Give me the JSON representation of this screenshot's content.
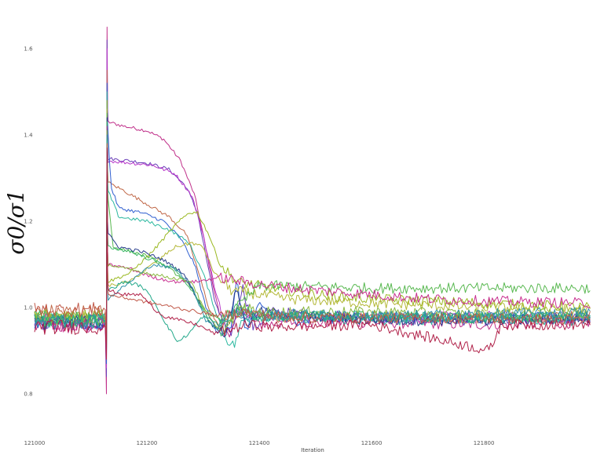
{
  "chart_data": {
    "type": "line",
    "title": "",
    "xlabel": "Iteration",
    "ylabel": "σ0/σ1",
    "xlim": [
      121000,
      121990
    ],
    "ylim": [
      0.72,
      1.66
    ],
    "xticks": [
      121000,
      121200,
      121400,
      121600,
      121800
    ],
    "yticks": [
      0.8,
      1.0,
      1.2,
      1.4,
      1.6
    ],
    "xtick_labels": [
      "121000",
      "121200",
      "121400",
      "121600",
      "121800"
    ],
    "ytick_labels": [
      "0.8",
      "1.0",
      "1.2",
      "1.4",
      "1.6"
    ],
    "grid": false,
    "legend": "none",
    "spike_x": 121128,
    "series": [
      {
        "color": "#c0308a",
        "base": 0.955,
        "peak": 1.65,
        "low": 0.8,
        "values": [
          [
            121131,
            1.43
          ],
          [
            121160,
            1.42
          ],
          [
            121200,
            1.41
          ],
          [
            121230,
            1.39
          ],
          [
            121260,
            1.34
          ],
          [
            121285,
            1.26
          ],
          [
            121300,
            1.17
          ],
          [
            121315,
            1.07
          ],
          [
            121330,
            0.98
          ],
          [
            121345,
            0.94
          ],
          [
            121370,
            0.99
          ],
          [
            121400,
            0.96
          ],
          [
            121450,
            0.965
          ],
          [
            121600,
            0.965
          ],
          [
            121800,
            0.96
          ],
          [
            121990,
            0.965
          ]
        ]
      },
      {
        "color": "#6a3fb8",
        "base": 0.965,
        "peak": 1.62,
        "low": 0.84,
        "values": [
          [
            121131,
            1.345
          ],
          [
            121170,
            1.34
          ],
          [
            121200,
            1.335
          ],
          [
            121240,
            1.32
          ],
          [
            121270,
            1.28
          ],
          [
            121290,
            1.22
          ],
          [
            121305,
            1.12
          ],
          [
            121320,
            1.02
          ],
          [
            121335,
            0.96
          ],
          [
            121350,
            0.94
          ],
          [
            121370,
            1.05
          ],
          [
            121390,
            0.95
          ],
          [
            121420,
            0.99
          ],
          [
            121600,
            0.975
          ],
          [
            121800,
            0.97
          ],
          [
            121990,
            0.975
          ]
        ]
      },
      {
        "color": "#b837c9",
        "base": 0.97,
        "peak": 1.6,
        "low": 0.86,
        "values": [
          [
            121131,
            1.34
          ],
          [
            121170,
            1.335
          ],
          [
            121210,
            1.33
          ],
          [
            121250,
            1.31
          ],
          [
            121280,
            1.26
          ],
          [
            121300,
            1.17
          ],
          [
            121320,
            1.05
          ],
          [
            121340,
            0.96
          ],
          [
            121360,
            1.0
          ],
          [
            121400,
            0.98
          ],
          [
            121600,
            0.975
          ],
          [
            121800,
            0.98
          ],
          [
            121990,
            0.975
          ]
        ]
      },
      {
        "color": "#c06848",
        "base": 0.99,
        "peak": 1.55,
        "low": 0.88,
        "values": [
          [
            121131,
            1.29
          ],
          [
            121160,
            1.27
          ],
          [
            121200,
            1.24
          ],
          [
            121240,
            1.21
          ],
          [
            121270,
            1.17
          ],
          [
            121290,
            1.09
          ],
          [
            121310,
            1.0
          ],
          [
            121330,
            0.95
          ],
          [
            121360,
            0.99
          ],
          [
            121400,
            0.975
          ],
          [
            121600,
            0.98
          ],
          [
            121800,
            0.975
          ],
          [
            121990,
            0.98
          ]
        ]
      },
      {
        "color": "#2f5fd0",
        "base": 0.965,
        "peak": 1.52,
        "low": 0.87,
        "values": [
          [
            121131,
            1.4
          ],
          [
            121136,
            1.28
          ],
          [
            121150,
            1.23
          ],
          [
            121190,
            1.22
          ],
          [
            121230,
            1.2
          ],
          [
            121260,
            1.16
          ],
          [
            121285,
            1.1
          ],
          [
            121305,
            1.0
          ],
          [
            121325,
            0.94
          ],
          [
            121350,
            0.96
          ],
          [
            121360,
            1.06
          ],
          [
            121375,
            0.95
          ],
          [
            121400,
            1.0
          ],
          [
            121450,
            0.97
          ],
          [
            121600,
            0.98
          ],
          [
            121800,
            0.975
          ],
          [
            121990,
            0.98
          ]
        ]
      },
      {
        "color": "#2cb8a0",
        "base": 0.97,
        "peak": 1.5,
        "low": 0.9,
        "values": [
          [
            121131,
            1.27
          ],
          [
            121150,
            1.21
          ],
          [
            121200,
            1.2
          ],
          [
            121240,
            1.18
          ],
          [
            121275,
            1.15
          ],
          [
            121300,
            1.08
          ],
          [
            121320,
            1.0
          ],
          [
            121340,
            0.93
          ],
          [
            121355,
            0.91
          ],
          [
            121370,
            0.97
          ],
          [
            121400,
            0.98
          ],
          [
            121600,
            0.97
          ],
          [
            121800,
            0.975
          ],
          [
            121990,
            0.97
          ]
        ]
      },
      {
        "color": "#9ab820",
        "base": 0.98,
        "peak": 1.48,
        "low": 0.9,
        "values": [
          [
            121131,
            1.06
          ],
          [
            121170,
            1.08
          ],
          [
            121210,
            1.13
          ],
          [
            121250,
            1.19
          ],
          [
            121275,
            1.22
          ],
          [
            121290,
            1.22
          ],
          [
            121310,
            1.17
          ],
          [
            121330,
            1.1
          ],
          [
            121360,
            1.06
          ],
          [
            121400,
            1.05
          ],
          [
            121450,
            1.04
          ],
          [
            121500,
            1.03
          ],
          [
            121600,
            1.02
          ],
          [
            121800,
            1.01
          ],
          [
            121990,
            1.0
          ]
        ]
      },
      {
        "color": "#b4b838",
        "base": 0.975,
        "peak": 1.46,
        "low": 0.9,
        "values": [
          [
            121131,
            1.05
          ],
          [
            121170,
            1.06
          ],
          [
            121210,
            1.1
          ],
          [
            121250,
            1.14
          ],
          [
            121280,
            1.15
          ],
          [
            121300,
            1.14
          ],
          [
            121320,
            1.08
          ],
          [
            121350,
            1.04
          ],
          [
            121400,
            1.03
          ],
          [
            121450,
            1.02
          ],
          [
            121600,
            1.01
          ],
          [
            121800,
            1.0
          ],
          [
            121990,
            0.995
          ]
        ]
      },
      {
        "color": "#58b850",
        "base": 0.97,
        "peak": 1.45,
        "low": 0.9,
        "values": [
          [
            121131,
            1.25
          ],
          [
            121140,
            1.14
          ],
          [
            121170,
            1.13
          ],
          [
            121200,
            1.12
          ],
          [
            121240,
            1.09
          ],
          [
            121270,
            1.06
          ],
          [
            121300,
            1.0
          ],
          [
            121330,
            0.97
          ],
          [
            121360,
            1.0
          ],
          [
            121400,
            1.05
          ],
          [
            121450,
            1.05
          ],
          [
            121600,
            1.045
          ],
          [
            121800,
            1.045
          ],
          [
            121990,
            1.045
          ]
        ]
      },
      {
        "color": "#283c8c",
        "base": 0.965,
        "peak": 1.44,
        "low": 0.89,
        "values": [
          [
            121131,
            1.17
          ],
          [
            121150,
            1.14
          ],
          [
            121190,
            1.13
          ],
          [
            121230,
            1.11
          ],
          [
            121265,
            1.08
          ],
          [
            121290,
            1.02
          ],
          [
            121315,
            0.96
          ],
          [
            121340,
            0.94
          ],
          [
            121360,
            1.05
          ],
          [
            121375,
            0.96
          ],
          [
            121400,
            0.99
          ],
          [
            121600,
            0.97
          ],
          [
            121800,
            0.97
          ],
          [
            121990,
            0.975
          ]
        ]
      },
      {
        "color": "#3cb868",
        "base": 0.975,
        "peak": 1.43,
        "low": 0.9,
        "values": [
          [
            121131,
            1.14
          ],
          [
            121170,
            1.13
          ],
          [
            121210,
            1.11
          ],
          [
            121250,
            1.09
          ],
          [
            121280,
            1.04
          ],
          [
            121310,
            0.97
          ],
          [
            121335,
            0.94
          ],
          [
            121360,
            1.0
          ],
          [
            121400,
            0.98
          ],
          [
            121600,
            0.98
          ],
          [
            121800,
            0.975
          ],
          [
            121990,
            0.98
          ]
        ]
      },
      {
        "color": "#c83090",
        "base": 0.96,
        "peak": 1.42,
        "low": 0.88,
        "values": [
          [
            121131,
            1.1
          ],
          [
            121170,
            1.09
          ],
          [
            121210,
            1.07
          ],
          [
            121250,
            1.06
          ],
          [
            121290,
            1.06
          ],
          [
            121330,
            1.07
          ],
          [
            121370,
            1.06
          ],
          [
            121420,
            1.05
          ],
          [
            121500,
            1.04
          ],
          [
            121600,
            1.03
          ],
          [
            121700,
            1.02
          ],
          [
            121800,
            1.015
          ],
          [
            121990,
            1.01
          ]
        ]
      },
      {
        "color": "#8ab840",
        "base": 0.98,
        "peak": 1.41,
        "low": 0.9,
        "values": [
          [
            121131,
            1.1
          ],
          [
            121160,
            1.09
          ],
          [
            121200,
            1.08
          ],
          [
            121240,
            1.07
          ],
          [
            121280,
            1.06
          ],
          [
            121300,
            1.0
          ],
          [
            121320,
            0.96
          ],
          [
            121340,
            0.95
          ],
          [
            121370,
            1.0
          ],
          [
            121400,
            0.99
          ],
          [
            121600,
            0.99
          ],
          [
            121800,
            0.985
          ],
          [
            121990,
            0.985
          ]
        ]
      },
      {
        "color": "#3090a8",
        "base": 0.97,
        "peak": 1.4,
        "low": 0.9,
        "values": [
          [
            121131,
            1.02
          ],
          [
            121170,
            1.06
          ],
          [
            121210,
            1.1
          ],
          [
            121250,
            1.09
          ],
          [
            121280,
            1.05
          ],
          [
            121305,
            0.97
          ],
          [
            121325,
            0.95
          ],
          [
            121345,
            0.99
          ],
          [
            121380,
            0.98
          ],
          [
            121450,
            0.985
          ],
          [
            121600,
            0.98
          ],
          [
            121800,
            0.985
          ],
          [
            121990,
            0.99
          ]
        ]
      },
      {
        "color": "#22a88a",
        "base": 0.97,
        "peak": 1.39,
        "low": 0.9,
        "values": [
          [
            121131,
            1.04
          ],
          [
            121160,
            1.06
          ],
          [
            121190,
            1.05
          ],
          [
            121210,
            1.02
          ],
          [
            121235,
            0.96
          ],
          [
            121255,
            0.92
          ],
          [
            121275,
            0.94
          ],
          [
            121300,
            0.98
          ],
          [
            121330,
            0.96
          ],
          [
            121360,
            0.99
          ],
          [
            121400,
            0.98
          ],
          [
            121600,
            0.98
          ],
          [
            121800,
            0.975
          ],
          [
            121990,
            0.98
          ]
        ]
      },
      {
        "color": "#c05848",
        "base": 0.995,
        "peak": 1.38,
        "low": 0.9,
        "values": [
          [
            121131,
            1.03
          ],
          [
            121170,
            1.02
          ],
          [
            121210,
            1.01
          ],
          [
            121250,
            1.0
          ],
          [
            121290,
            0.99
          ],
          [
            121330,
            0.98
          ],
          [
            121370,
            0.99
          ],
          [
            121420,
            0.98
          ],
          [
            121600,
            0.975
          ],
          [
            121800,
            0.975
          ],
          [
            121990,
            0.97
          ]
        ]
      },
      {
        "color": "#b02048",
        "base": 0.955,
        "peak": 1.37,
        "low": 0.88,
        "values": [
          [
            121131,
            1.04
          ],
          [
            121160,
            1.03
          ],
          [
            121190,
            1.03
          ],
          [
            121210,
            1.0
          ],
          [
            121230,
            0.98
          ],
          [
            121260,
            0.97
          ],
          [
            121290,
            0.96
          ],
          [
            121320,
            0.94
          ],
          [
            121350,
            0.95
          ],
          [
            121380,
            0.96
          ],
          [
            121420,
            0.955
          ],
          [
            121600,
            0.96
          ],
          [
            121810,
            0.9
          ],
          [
            121830,
            0.96
          ],
          [
            121990,
            0.96
          ]
        ]
      }
    ]
  }
}
